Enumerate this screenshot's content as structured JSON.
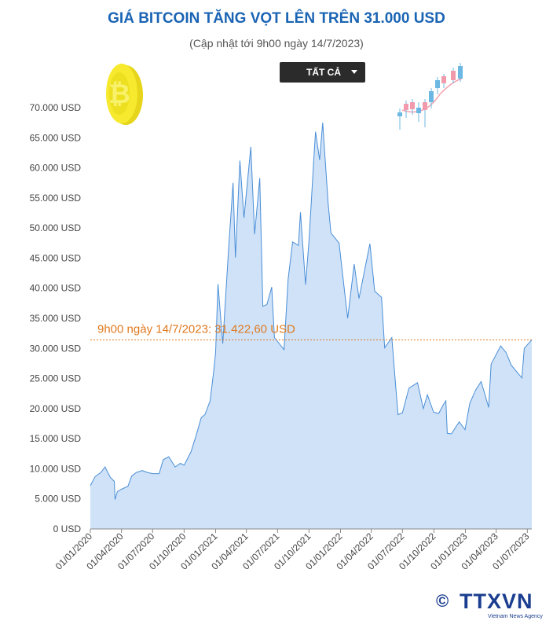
{
  "header": {
    "title": "GIÁ BITCOIN TĂNG VỌT LÊN TRÊN 31.000 USD",
    "subtitle": "(Cập nhật tới 9h00 ngày 14/7/2023)"
  },
  "filter": {
    "label": "TẤT CẢ"
  },
  "logo": {
    "copyright": "©",
    "text": "TTXVN",
    "agency": "Vietnam News Agency"
  },
  "colors": {
    "title": "#1a64b4",
    "line": "#4a8ed6",
    "area": "#cfe2f8",
    "reference": "#e07a1f"
  },
  "icons": [
    "bitcoin-coin-icon",
    "candlestick-chart-icon",
    "chevron-down-icon"
  ],
  "chart_data": {
    "type": "area",
    "title": "GIÁ BITCOIN TĂNG VỌT LÊN TRÊN 31.000 USD",
    "subtitle": "(Cập nhật tới 9h00 ngày 14/7/2023)",
    "xlabel": "",
    "ylabel": "",
    "ylim": [
      0,
      70000
    ],
    "y_ticks": [
      0,
      5000,
      10000,
      15000,
      20000,
      25000,
      30000,
      35000,
      40000,
      45000,
      50000,
      55000,
      60000,
      65000,
      70000
    ],
    "y_tick_labels": [
      "0 USD",
      "5.000 USD",
      "10.000 USD",
      "15.000 USD",
      "20.000 USD",
      "25.000 USD",
      "30.000 USD",
      "35.000 USD",
      "40.000 USD",
      "45.000 USD",
      "50.000 USD",
      "55.000 USD",
      "60.000 USD",
      "65.000 USD",
      "70.000 USD"
    ],
    "x_ticks": [
      "01/01/2020",
      "01/04/2020",
      "01/07/2020",
      "01/10/2020",
      "01/01/2021",
      "01/04/2021",
      "01/07/2021",
      "01/10/2021",
      "01/01/2022",
      "01/04/2022",
      "01/07/2022",
      "01/10/2022",
      "01/01/2023",
      "01/04/2023",
      "01/07/2023"
    ],
    "xlim": [
      "2020-01-01",
      "2023-07-14"
    ],
    "grid": false,
    "series": [
      {
        "points": [
          [
            "2020-01-01",
            7200
          ],
          [
            "2020-01-15",
            8700
          ],
          [
            "2020-02-01",
            9400
          ],
          [
            "2020-02-13",
            10300
          ],
          [
            "2020-02-28",
            8600
          ],
          [
            "2020-03-11",
            7900
          ],
          [
            "2020-03-13",
            4900
          ],
          [
            "2020-03-20",
            6200
          ],
          [
            "2020-04-01",
            6600
          ],
          [
            "2020-04-20",
            7100
          ],
          [
            "2020-05-01",
            8800
          ],
          [
            "2020-05-15",
            9400
          ],
          [
            "2020-06-01",
            9700
          ],
          [
            "2020-06-15",
            9400
          ],
          [
            "2020-07-01",
            9200
          ],
          [
            "2020-07-20",
            9200
          ],
          [
            "2020-08-01",
            11500
          ],
          [
            "2020-08-17",
            12000
          ],
          [
            "2020-09-05",
            10300
          ],
          [
            "2020-09-20",
            10900
          ],
          [
            "2020-10-01",
            10600
          ],
          [
            "2020-10-21",
            12800
          ],
          [
            "2020-11-05",
            15500
          ],
          [
            "2020-11-20",
            18500
          ],
          [
            "2020-12-01",
            19000
          ],
          [
            "2020-12-16",
            21300
          ],
          [
            "2020-12-27",
            26500
          ],
          [
            "2021-01-01",
            29400
          ],
          [
            "2021-01-08",
            40700
          ],
          [
            "2021-01-22",
            30800
          ],
          [
            "2021-02-08",
            46500
          ],
          [
            "2021-02-21",
            57500
          ],
          [
            "2021-02-28",
            45100
          ],
          [
            "2021-03-13",
            61200
          ],
          [
            "2021-03-25",
            51700
          ],
          [
            "2021-04-14",
            63500
          ],
          [
            "2021-04-25",
            49000
          ],
          [
            "2021-05-10",
            58300
          ],
          [
            "2021-05-19",
            37000
          ],
          [
            "2021-05-31",
            37300
          ],
          [
            "2021-06-14",
            40200
          ],
          [
            "2021-06-22",
            31800
          ],
          [
            "2021-07-20",
            29800
          ],
          [
            "2021-08-01",
            41500
          ],
          [
            "2021-08-14",
            47700
          ],
          [
            "2021-08-31",
            47100
          ],
          [
            "2021-09-06",
            52600
          ],
          [
            "2021-09-21",
            40600
          ],
          [
            "2021-10-01",
            47900
          ],
          [
            "2021-10-15",
            61500
          ],
          [
            "2021-10-20",
            66000
          ],
          [
            "2021-11-01",
            61300
          ],
          [
            "2021-11-10",
            67500
          ],
          [
            "2021-11-26",
            54000
          ],
          [
            "2021-12-04",
            49200
          ],
          [
            "2021-12-28",
            47500
          ],
          [
            "2022-01-05",
            43400
          ],
          [
            "2022-01-22",
            35000
          ],
          [
            "2022-02-10",
            44000
          ],
          [
            "2022-02-24",
            38300
          ],
          [
            "2022-03-28",
            47400
          ],
          [
            "2022-04-11",
            39500
          ],
          [
            "2022-05-01",
            38500
          ],
          [
            "2022-05-10",
            30100
          ],
          [
            "2022-05-31",
            31800
          ],
          [
            "2022-06-13",
            22500
          ],
          [
            "2022-06-18",
            19000
          ],
          [
            "2022-07-01",
            19300
          ],
          [
            "2022-07-20",
            23400
          ],
          [
            "2022-08-14",
            24300
          ],
          [
            "2022-08-31",
            20000
          ],
          [
            "2022-09-12",
            22300
          ],
          [
            "2022-09-30",
            19400
          ],
          [
            "2022-10-15",
            19200
          ],
          [
            "2022-10-29",
            20700
          ],
          [
            "2022-11-05",
            21300
          ],
          [
            "2022-11-09",
            15900
          ],
          [
            "2022-11-21",
            15800
          ],
          [
            "2022-12-14",
            17800
          ],
          [
            "2022-12-31",
            16500
          ],
          [
            "2023-01-14",
            20900
          ],
          [
            "2023-01-31",
            23100
          ],
          [
            "2023-02-16",
            24500
          ],
          [
            "2023-03-10",
            20200
          ],
          [
            "2023-03-17",
            27400
          ],
          [
            "2023-04-14",
            30400
          ],
          [
            "2023-04-30",
            29300
          ],
          [
            "2023-05-15",
            27200
          ],
          [
            "2023-06-15",
            25100
          ],
          [
            "2023-06-22",
            30000
          ],
          [
            "2023-07-01",
            30600
          ],
          [
            "2023-07-14",
            31422.6
          ]
        ]
      }
    ],
    "reference_line": {
      "y": 31422.6,
      "label": "9h00 ngày 14/7/2023: 31.422,60 USD"
    }
  }
}
